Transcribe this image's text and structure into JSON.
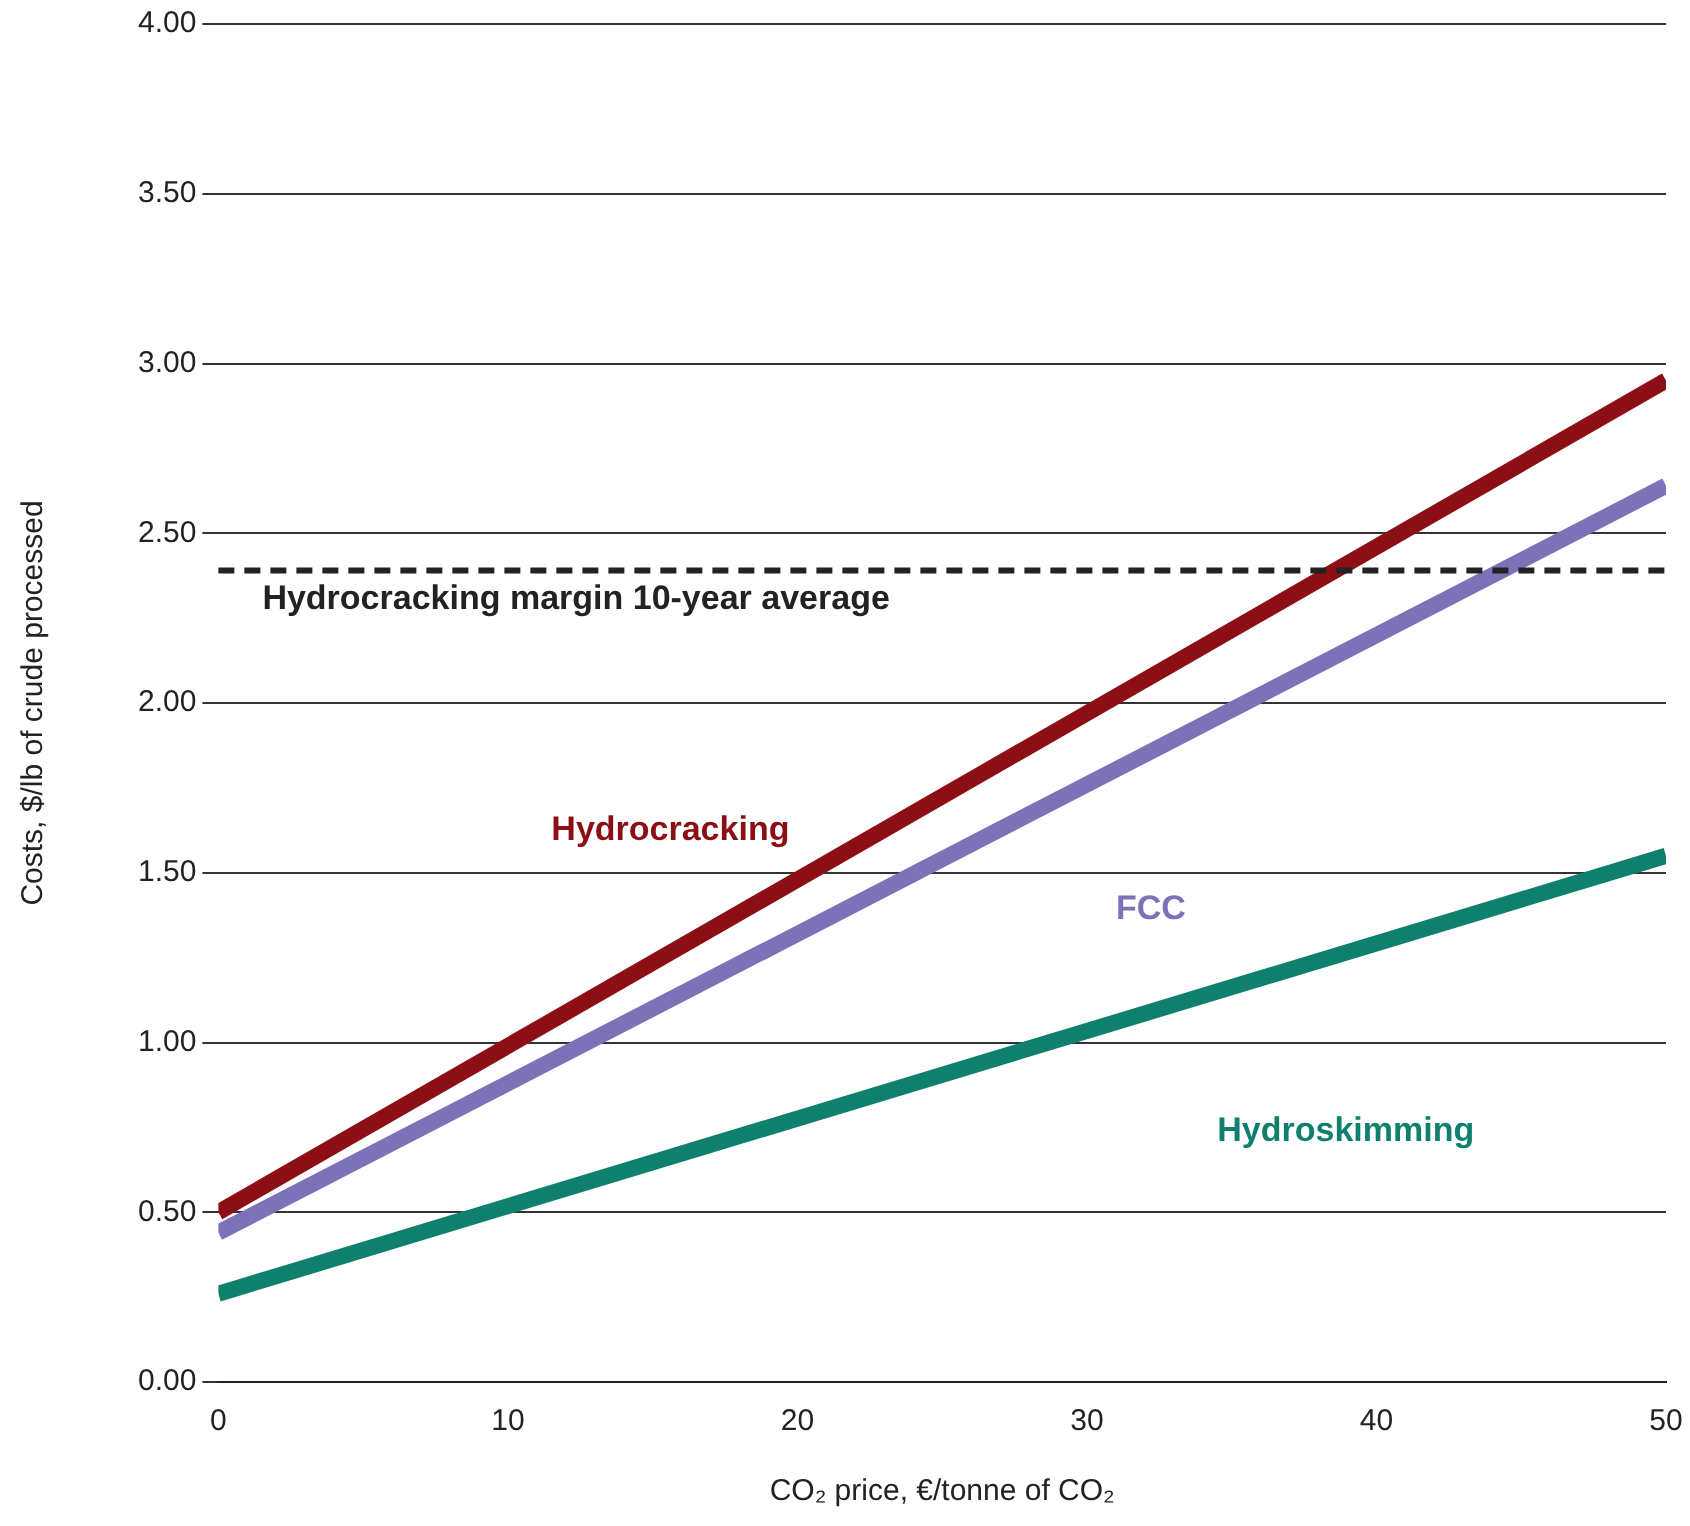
{
  "chart_data": {
    "type": "line",
    "xlabel": "CO₂ price, €/tonne of CO₂",
    "ylabel": "Costs, $/lb of crude processed",
    "x": [
      0,
      50
    ],
    "series": [
      {
        "name": "Hydrocracking",
        "color": "#8b0f14",
        "values": [
          0.5,
          2.95
        ]
      },
      {
        "name": "FCC",
        "color": "#7b72b8",
        "values": [
          0.44,
          2.64
        ]
      },
      {
        "name": "Hydroskimming",
        "color": "#0f7f6e",
        "values": [
          0.26,
          1.55
        ]
      }
    ],
    "xlim": [
      0,
      50
    ],
    "xticks": [
      0,
      10,
      20,
      30,
      40,
      50
    ],
    "ylim": [
      0,
      4
    ],
    "yticks": [
      {
        "value": 0,
        "label": "0.00"
      },
      {
        "value": 0.5,
        "label": "0.50"
      },
      {
        "value": 1,
        "label": "1.00"
      },
      {
        "value": 1.5,
        "label": "1.50"
      },
      {
        "value": 2,
        "label": "2.00"
      },
      {
        "value": 2.5,
        "label": "2.50"
      },
      {
        "value": 3,
        "label": "3.00"
      },
      {
        "value": 3.5,
        "label": "3.50"
      },
      {
        "value": 4,
        "label": "4.00"
      }
    ],
    "ref_lines": [
      {
        "axis": "y",
        "value": 2.39,
        "label": "Hydrocracking margin 10-year average",
        "color": "#222222",
        "line_style": "dashed"
      }
    ],
    "grid": "y",
    "legend": false,
    "marker": "none",
    "line_style": "solid"
  }
}
